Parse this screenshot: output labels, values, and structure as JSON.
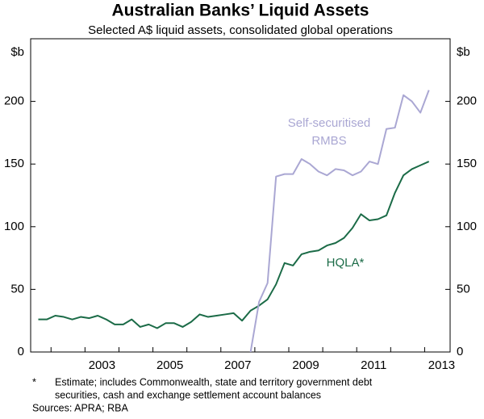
{
  "chart_data": {
    "type": "line",
    "title": "Australian Banks’ Liquid Assets",
    "subtitle": "Selected A$ liquid assets, consolidated global operations",
    "ylabel": "$b",
    "y2label": "$b",
    "x": [
      2001.625,
      2001.875,
      2002.125,
      2002.375,
      2002.625,
      2002.875,
      2003.125,
      2003.375,
      2003.625,
      2003.875,
      2004.125,
      2004.375,
      2004.625,
      2004.875,
      2005.125,
      2005.375,
      2005.625,
      2005.875,
      2006.125,
      2006.375,
      2006.625,
      2006.875,
      2007.125,
      2007.375,
      2007.625,
      2007.875,
      2008.125,
      2008.375,
      2008.625,
      2008.875,
      2009.125,
      2009.375,
      2009.625,
      2009.875,
      2010.125,
      2010.375,
      2010.625,
      2010.875,
      2011.125,
      2011.375,
      2011.625,
      2011.875,
      2012.125,
      2012.375,
      2012.625,
      2012.875,
      2013.125
    ],
    "series": [
      {
        "name": "HQLA*",
        "color": "#1b6b47",
        "values": [
          26,
          26,
          29,
          28,
          26,
          28,
          27,
          29,
          26,
          22,
          22,
          26,
          20,
          22,
          19,
          23,
          23,
          20,
          24,
          30,
          28,
          29,
          30,
          31,
          25,
          33,
          37,
          42,
          54,
          71,
          69,
          78,
          80,
          81,
          85,
          87,
          91,
          99,
          110,
          105,
          106,
          109,
          127,
          141,
          146,
          149,
          152
        ]
      },
      {
        "name": [
          "Self-securitised",
          "RMBS"
        ],
        "color": "#aaa7d3",
        "values": [
          null,
          null,
          null,
          null,
          null,
          null,
          null,
          null,
          null,
          null,
          null,
          null,
          null,
          null,
          null,
          null,
          null,
          null,
          null,
          null,
          null,
          null,
          null,
          null,
          null,
          0,
          40,
          55,
          140,
          142,
          142,
          154,
          150,
          144,
          141,
          146,
          145,
          141,
          144,
          152,
          150,
          178,
          179,
          205,
          200,
          191,
          209
        ]
      }
    ],
    "xlim": [
      2001.4,
      2013.75
    ],
    "xticks": [
      {
        "value": 2003.5,
        "label": "2003"
      },
      {
        "value": 2005.5,
        "label": "2005"
      },
      {
        "value": 2007.5,
        "label": "2007"
      },
      {
        "value": 2009.5,
        "label": "2009"
      },
      {
        "value": 2011.5,
        "label": "2011"
      },
      {
        "value": 2013.5,
        "label": "2013"
      }
    ],
    "xminorticks": [
      2002,
      2003,
      2004,
      2005,
      2006,
      2007,
      2008,
      2009,
      2010,
      2011,
      2012,
      2013
    ],
    "ylim": [
      0,
      250
    ],
    "yticks": [
      0,
      50,
      100,
      150,
      200
    ],
    "y2lim": [
      0,
      250
    ],
    "y2ticks": [
      0,
      50,
      100,
      150,
      200
    ],
    "notes": [
      {
        "marker": "*",
        "lines": [
          "Estimate; includes Commonwealth, state and territory government debt",
          "securities, cash and exchange settlement account balances"
        ]
      },
      {
        "lines": [
          "Sources: APRA; RBA"
        ]
      }
    ]
  }
}
